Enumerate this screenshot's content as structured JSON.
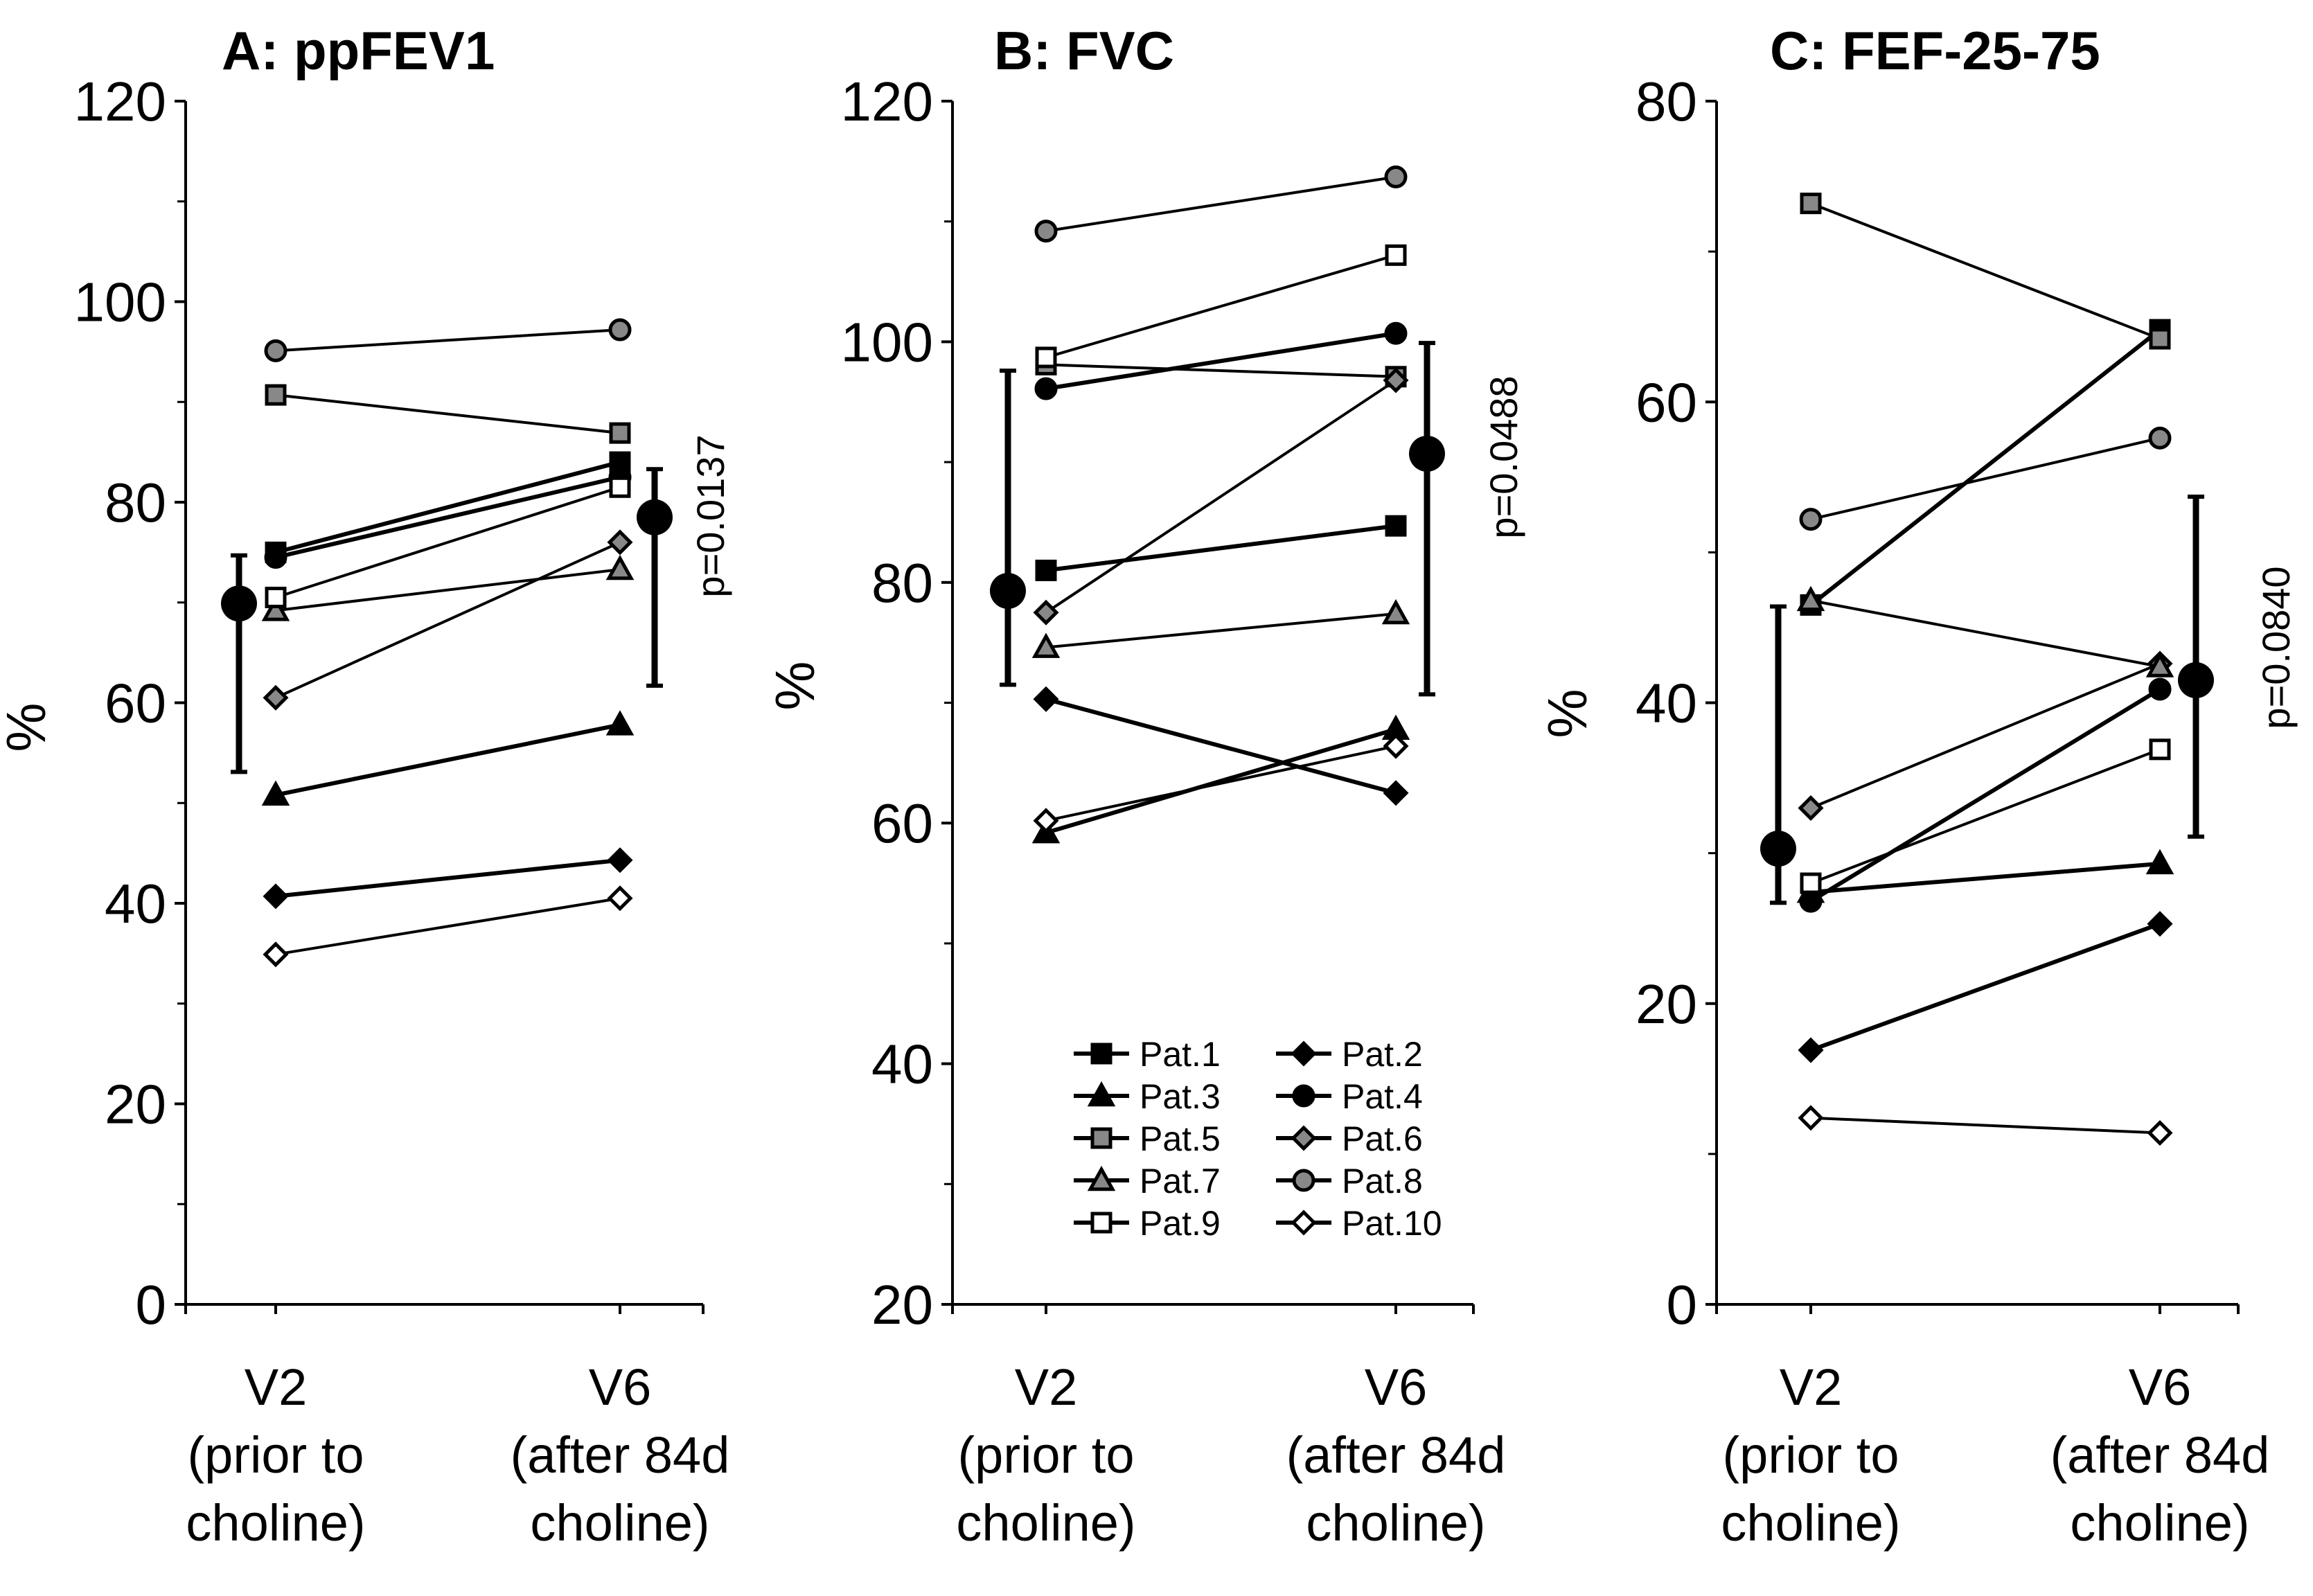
{
  "chart_data": [
    {
      "type": "line",
      "title": "A: ppFEV1",
      "ylabel": "%",
      "ylim": [
        0,
        120
      ],
      "yticks": [
        0,
        20,
        40,
        60,
        80,
        100,
        120
      ],
      "categories": [
        [
          "V2",
          "(prior to",
          "choline)"
        ],
        [
          "V6",
          "(after 84d",
          "choline)"
        ]
      ],
      "series": [
        {
          "name": "Pat.1",
          "values": [
            75,
            84
          ]
        },
        {
          "name": "Pat.2",
          "values": [
            40.7,
            44.3
          ]
        },
        {
          "name": "Pat.3",
          "values": [
            50.8,
            57.8
          ]
        },
        {
          "name": "Pat.4",
          "values": [
            74.5,
            82.5
          ]
        },
        {
          "name": "Pat.5",
          "values": [
            90.7,
            86.9
          ]
        },
        {
          "name": "Pat.6",
          "values": [
            60.5,
            76
          ]
        },
        {
          "name": "Pat.7",
          "values": [
            69.2,
            73.3
          ]
        },
        {
          "name": "Pat.8",
          "values": [
            95.1,
            97.2
          ]
        },
        {
          "name": "Pat.9",
          "values": [
            70.5,
            81.5
          ]
        },
        {
          "name": "Pat.10",
          "values": [
            34.9,
            40.5
          ]
        }
      ],
      "mean": {
        "values": [
          69.9,
          78.5
        ],
        "low": [
          53.1,
          61.7
        ],
        "high": [
          74.7,
          83.3
        ]
      },
      "p_value": "p=0.0137"
    },
    {
      "type": "line",
      "title": "B: FVC",
      "ylabel": "%",
      "ylim": [
        20,
        120
      ],
      "yticks": [
        20,
        40,
        60,
        80,
        100,
        120
      ],
      "categories": [
        [
          "V2",
          "(prior to",
          "choline)"
        ],
        [
          "V6",
          "(after 84d",
          "choline)"
        ]
      ],
      "series": [
        {
          "name": "Pat.1",
          "values": [
            81,
            84.7
          ]
        },
        {
          "name": "Pat.2",
          "values": [
            70.3,
            62.5
          ]
        },
        {
          "name": "Pat.3",
          "values": [
            59.2,
            67.8
          ]
        },
        {
          "name": "Pat.4",
          "values": [
            96.1,
            100.7
          ]
        },
        {
          "name": "Pat.5",
          "values": [
            98.1,
            97.1
          ]
        },
        {
          "name": "Pat.6",
          "values": [
            77.5,
            96.8
          ]
        },
        {
          "name": "Pat.7",
          "values": [
            74.6,
            77.4
          ]
        },
        {
          "name": "Pat.8",
          "values": [
            109.2,
            113.7
          ]
        },
        {
          "name": "Pat.9",
          "values": [
            98.7,
            107.2
          ]
        },
        {
          "name": "Pat.10",
          "values": [
            60.2,
            66.4
          ]
        }
      ],
      "mean": {
        "values": [
          79.3,
          90.7
        ],
        "low": [
          71.5,
          70.7
        ],
        "high": [
          97.6,
          99.9
        ]
      },
      "p_value": "p=0.0488",
      "legend": {
        "placement": "lower-center",
        "entries": [
          "Pat.1",
          "Pat.2",
          "Pat.3",
          "Pat.4",
          "Pat.5",
          "Pat.6",
          "Pat.7",
          "Pat.8",
          "Pat.9",
          "Pat.10"
        ]
      }
    },
    {
      "type": "line",
      "title": "C: FEF-25-75",
      "ylabel": "%",
      "ylim": [
        0,
        80
      ],
      "yticks": [
        0,
        20,
        40,
        60,
        80
      ],
      "categories": [
        [
          "V2",
          "(prior to",
          "choline)"
        ],
        [
          "V6",
          "(after 84d",
          "choline)"
        ]
      ],
      "series": [
        {
          "name": "Pat.1",
          "values": [
            46.5,
            64.8
          ]
        },
        {
          "name": "Pat.2",
          "values": [
            16.9,
            25.3
          ]
        },
        {
          "name": "Pat.3",
          "values": [
            27.4,
            29.3
          ]
        },
        {
          "name": "Pat.4",
          "values": [
            26.8,
            40.9
          ]
        },
        {
          "name": "Pat.5",
          "values": [
            73.2,
            64.2
          ]
        },
        {
          "name": "Pat.6",
          "values": [
            33,
            42.6
          ]
        },
        {
          "name": "Pat.7",
          "values": [
            46.8,
            42.4
          ]
        },
        {
          "name": "Pat.8",
          "values": [
            52.2,
            57.6
          ]
        },
        {
          "name": "Pat.9",
          "values": [
            28,
            36.9
          ]
        },
        {
          "name": "Pat.10",
          "values": [
            12.4,
            11.4
          ]
        }
      ],
      "mean": {
        "values": [
          30.3,
          41.5
        ],
        "low": [
          26.7,
          31.1
        ],
        "high": [
          46.4,
          53.7
        ]
      },
      "p_value": "p=0.0840"
    }
  ],
  "markers": {
    "Pat.1": "filled-square",
    "Pat.2": "filled-diamond",
    "Pat.3": "filled-triangle",
    "Pat.4": "filled-circle",
    "Pat.5": "gray-square",
    "Pat.6": "gray-diamond",
    "Pat.7": "gray-triangle",
    "Pat.8": "gray-circle",
    "Pat.9": "open-square",
    "Pat.10": "open-diamond"
  },
  "colors": {
    "black": "#000000",
    "gray": "#888888",
    "open": "#ffffff"
  }
}
